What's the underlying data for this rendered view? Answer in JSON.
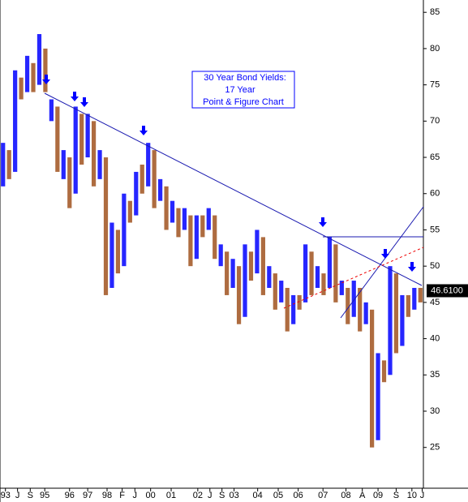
{
  "chart_data": {
    "type": "pointfigure",
    "annotation": [
      "30 Year Bond Yields:",
      "17  Year",
      "Point & Figure Chart"
    ],
    "ylim": [
      19.6,
      86.7
    ],
    "yticks": [
      25,
      30,
      35,
      40,
      45,
      50,
      55,
      60,
      65,
      70,
      75,
      80,
      85
    ],
    "xlim": [
      0,
      70
    ],
    "xticks": [
      {
        "value": 0.9,
        "label": "93"
      },
      {
        "value": 2.9,
        "label": "J"
      },
      {
        "value": 5,
        "label": "S"
      },
      {
        "value": 7.4,
        "label": "95"
      },
      {
        "value": 11.5,
        "label": "96"
      },
      {
        "value": 14.5,
        "label": "97"
      },
      {
        "value": 17.7,
        "label": "98"
      },
      {
        "value": 20.2,
        "label": "F"
      },
      {
        "value": 22.3,
        "label": "J"
      },
      {
        "value": 24.9,
        "label": "00"
      },
      {
        "value": 28.3,
        "label": "01"
      },
      {
        "value": 32.7,
        "label": "02"
      },
      {
        "value": 34.7,
        "label": "J"
      },
      {
        "value": 36.7,
        "label": "S"
      },
      {
        "value": 38.7,
        "label": "03"
      },
      {
        "value": 42.6,
        "label": "04"
      },
      {
        "value": 46,
        "label": "05"
      },
      {
        "value": 49.3,
        "label": "06"
      },
      {
        "value": 53.4,
        "label": "07"
      },
      {
        "value": 57.2,
        "label": "08"
      },
      {
        "value": 59.9,
        "label": "A"
      },
      {
        "value": 62.5,
        "label": "09"
      },
      {
        "value": 65.5,
        "label": "S"
      },
      {
        "value": 68.1,
        "label": "10"
      },
      {
        "value": 69.8,
        "label": "J"
      }
    ],
    "up_color": "#0000ff",
    "down_color": "#a0521e",
    "low": [
      61,
      62,
      63,
      73,
      74,
      74,
      75,
      74,
      70,
      63,
      62,
      58,
      60,
      64,
      65,
      61,
      62,
      46,
      47,
      49,
      50,
      56,
      57,
      60,
      61,
      58,
      59,
      55,
      56,
      54,
      55,
      50,
      51,
      54,
      55,
      51,
      50,
      46,
      47,
      42,
      43,
      48,
      49,
      46,
      47,
      44,
      45,
      41,
      42,
      44,
      45,
      46,
      47,
      46,
      47,
      45,
      46,
      42,
      43,
      41,
      42,
      25,
      26,
      34,
      35,
      38,
      39,
      43,
      44,
      45
    ],
    "high": [
      67,
      66,
      77,
      76,
      79,
      78,
      82,
      80,
      73,
      72,
      66,
      65,
      72,
      71,
      71,
      70,
      66,
      65,
      56,
      55,
      60,
      59,
      63,
      64,
      67,
      66,
      62,
      61,
      59,
      58,
      58,
      57,
      57,
      57,
      58,
      57,
      53,
      52,
      51,
      50,
      53,
      52,
      55,
      54,
      50,
      49,
      48,
      47,
      46,
      46,
      53,
      52,
      50,
      49,
      54,
      53,
      48,
      47,
      48,
      47,
      45,
      44,
      38,
      37,
      50,
      49,
      46,
      46,
      47,
      47
    ],
    "last_value": {
      "value": 46.61,
      "label": "46.6100"
    }
  }
}
